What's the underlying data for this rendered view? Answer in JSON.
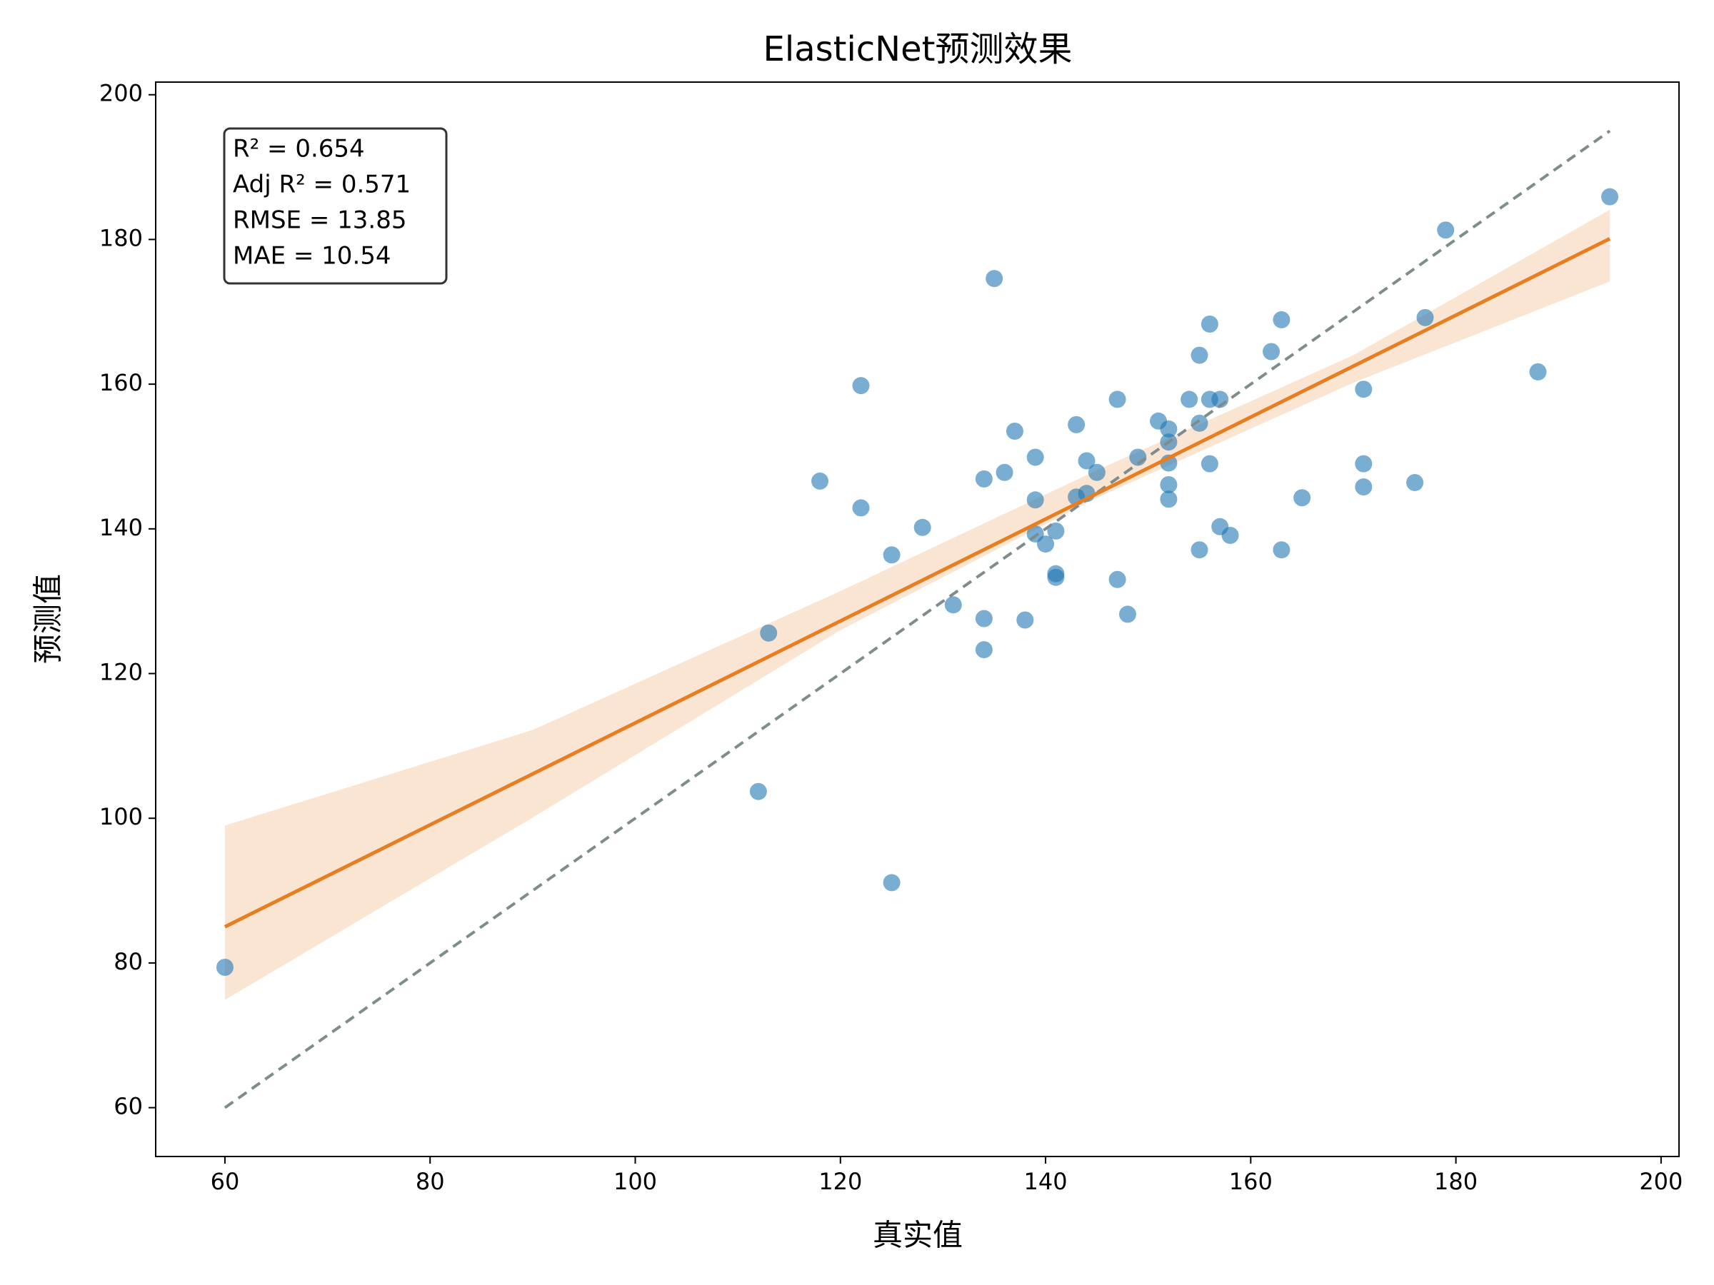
{
  "chart_data": {
    "type": "scatter",
    "title": "ElasticNet预测效果",
    "xlabel": "真实值",
    "ylabel": "预测值",
    "xlim": [
      53.25,
      201.75
    ],
    "ylim": [
      53.25,
      201.75
    ],
    "xticks": [
      60,
      80,
      100,
      120,
      140,
      160,
      180,
      200
    ],
    "yticks": [
      60,
      80,
      100,
      120,
      140,
      160,
      180,
      200
    ],
    "color": "#1f77b4",
    "x": [
      60,
      112,
      113,
      118,
      122,
      122,
      125,
      125,
      128,
      131,
      134,
      134,
      134,
      135,
      136,
      137,
      138,
      139,
      139,
      139,
      140,
      141,
      141,
      141,
      143,
      143,
      144,
      144,
      145,
      147,
      147,
      148,
      149,
      151,
      152,
      152,
      152,
      152,
      152,
      154,
      155,
      155,
      155,
      156,
      156,
      156,
      157,
      157,
      158,
      162,
      163,
      163,
      165,
      171,
      171,
      171,
      176,
      177,
      179,
      188,
      195
    ],
    "values": [
      79.4,
      103.7,
      125.6,
      146.6,
      159.8,
      142.9,
      136.4,
      91.1,
      140.2,
      129.5,
      146.9,
      127.6,
      123.3,
      174.6,
      147.8,
      153.5,
      127.4,
      149.9,
      144.0,
      139.3,
      137.9,
      139.7,
      133.8,
      133.3,
      154.4,
      144.4,
      149.4,
      144.9,
      147.8,
      157.9,
      133.0,
      128.2,
      149.9,
      154.9,
      153.8,
      152.0,
      149.1,
      146.1,
      144.1,
      157.9,
      164.0,
      154.6,
      137.1,
      168.3,
      157.9,
      149.0,
      157.9,
      140.3,
      139.1,
      164.5,
      168.9,
      137.1,
      144.3,
      159.3,
      149.0,
      145.8,
      146.4,
      169.2,
      181.3,
      161.7,
      185.9
    ],
    "fit_line": {
      "color": "#e67e22",
      "x": [
        60,
        195
      ],
      "values": [
        85.0,
        180.1
      ]
    },
    "confidence_band": {
      "color": "#fae5d3",
      "x": [
        60,
        90,
        120,
        145,
        170,
        195
      ],
      "lower": [
        74.9,
        100.1,
        126.0,
        144.3,
        160.2,
        174.2
      ],
      "upper": [
        99.0,
        112.2,
        131.4,
        148.1,
        164.0,
        184.1
      ]
    },
    "reference_line": {
      "color": "#7f8c8d",
      "x": [
        60,
        195
      ],
      "values": [
        60,
        195
      ]
    },
    "annotation": [
      "R² = 0.654",
      "Adj R² = 0.571",
      "RMSE = 13.85",
      "MAE = 10.54"
    ]
  }
}
